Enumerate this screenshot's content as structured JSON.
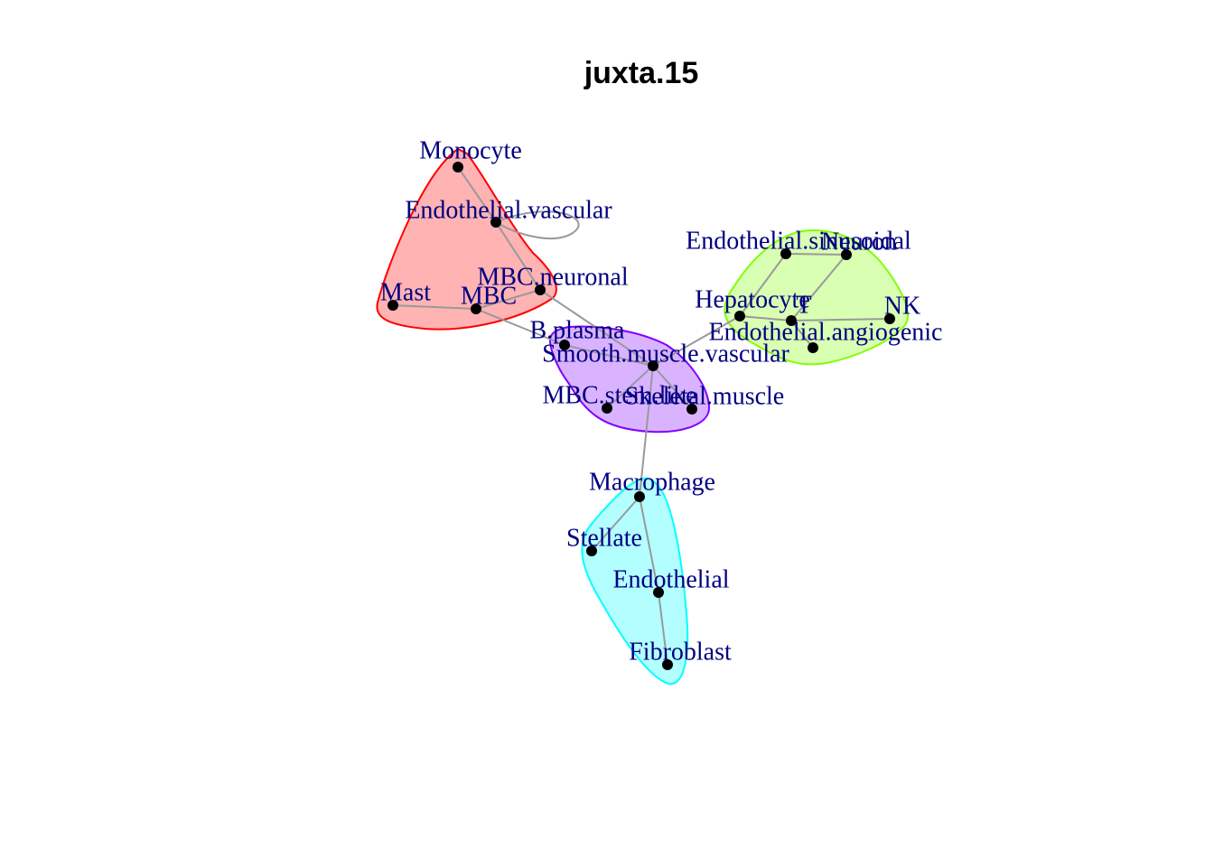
{
  "title": "juxta.15",
  "colors": {
    "edge": "#999999",
    "node": "#000000",
    "label": "#000080"
  },
  "groups": [
    {
      "id": "red",
      "stroke": "#ff0000",
      "fill": "#ffb3b3",
      "members": [
        "Monocyte",
        "Endothelial.vascular",
        "MBC.neuronal",
        "Mast",
        "MBC"
      ]
    },
    {
      "id": "green",
      "stroke": "#80ff00",
      "fill": "#d9ffb3",
      "members": [
        "Endothelial.sinusoidal",
        "Neuron",
        "Hepatocyte",
        "T",
        "NK",
        "Endothelial.angiogenic"
      ]
    },
    {
      "id": "purple",
      "stroke": "#8000ff",
      "fill": "#d9b3ff",
      "members": [
        "B.plasma",
        "Smooth.muscle.vascular",
        "MBC.stem.like",
        "Skeletal.muscle"
      ]
    },
    {
      "id": "cyan",
      "stroke": "#00ffff",
      "fill": "#b3ffff",
      "members": [
        "Macrophage",
        "Stellate",
        "Endothelial",
        "Fibroblast"
      ]
    }
  ],
  "nodes": [
    {
      "id": "Monocyte",
      "label": "Monocyte"
    },
    {
      "id": "Endothelial.vascular",
      "label": "Endothelial.vascular"
    },
    {
      "id": "MBC.neuronal",
      "label": "MBC.neuronal"
    },
    {
      "id": "Mast",
      "label": "Mast"
    },
    {
      "id": "MBC",
      "label": "MBC"
    },
    {
      "id": "Endothelial.sinusoidal",
      "label": "Endothelial.sinusoidal"
    },
    {
      "id": "Neuron",
      "label": "Neuron"
    },
    {
      "id": "Hepatocyte",
      "label": "Hepatocyte"
    },
    {
      "id": "T",
      "label": "T"
    },
    {
      "id": "NK",
      "label": "NK"
    },
    {
      "id": "Endothelial.angiogenic",
      "label": "Endothelial.angiogenic"
    },
    {
      "id": "B.plasma",
      "label": "B.plasma"
    },
    {
      "id": "Smooth.muscle.vascular",
      "label": "Smooth.muscle.vascular"
    },
    {
      "id": "MBC.stem.like",
      "label": "MBC.stem.like"
    },
    {
      "id": "Skeletal.muscle",
      "label": "Skeletal.muscle"
    },
    {
      "id": "Macrophage",
      "label": "Macrophage"
    },
    {
      "id": "Stellate",
      "label": "Stellate"
    },
    {
      "id": "Endothelial",
      "label": "Endothelial"
    },
    {
      "id": "Fibroblast",
      "label": "Fibroblast"
    }
  ],
  "edges": [
    [
      "Monocyte",
      "Endothelial.vascular"
    ],
    [
      "Endothelial.vascular",
      "Endothelial.vascular"
    ],
    [
      "Endothelial.vascular",
      "MBC.neuronal"
    ],
    [
      "MBC.neuronal",
      "MBC"
    ],
    [
      "Mast",
      "MBC"
    ],
    [
      "MBC",
      "B.plasma"
    ],
    [
      "MBC.neuronal",
      "Smooth.muscle.vascular"
    ],
    [
      "B.plasma",
      "Smooth.muscle.vascular"
    ],
    [
      "Smooth.muscle.vascular",
      "MBC.stem.like"
    ],
    [
      "Smooth.muscle.vascular",
      "Skeletal.muscle"
    ],
    [
      "Smooth.muscle.vascular",
      "Hepatocyte"
    ],
    [
      "Smooth.muscle.vascular",
      "Macrophage"
    ],
    [
      "Hepatocyte",
      "Endothelial.sinusoidal"
    ],
    [
      "Endothelial.sinusoidal",
      "Neuron"
    ],
    [
      "Neuron",
      "T"
    ],
    [
      "Hepatocyte",
      "T"
    ],
    [
      "T",
      "NK"
    ],
    [
      "T",
      "Endothelial.angiogenic"
    ],
    [
      "Macrophage",
      "Stellate"
    ],
    [
      "Macrophage",
      "Endothelial"
    ],
    [
      "Endothelial",
      "Fibroblast"
    ]
  ]
}
